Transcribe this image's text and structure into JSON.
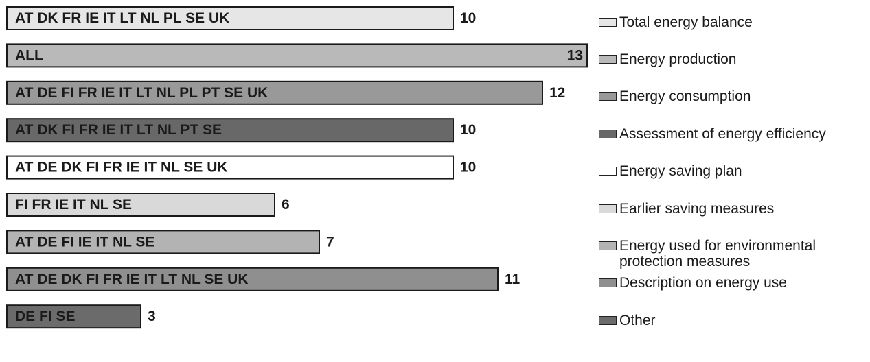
{
  "chart_data": {
    "type": "bar",
    "categories": [
      "Total energy balance",
      "Energy production",
      "Energy consumption",
      "Assessment of energy efficiency",
      "Energy saving plan",
      "Earlier saving measures",
      "Energy used for environmental protection measures",
      "Description on energy use",
      "Other"
    ],
    "bar_labels": [
      "AT DK FR IE IT LT NL PL SE UK",
      "ALL",
      "AT DE FI FR IE IT LT NL PL PT SE UK",
      "AT DK FI FR IE IT LT NL PT SE",
      "AT DE DK FI FR IE IT NL SE UK",
      "FI FR IE IT NL SE",
      "AT DE FI IE IT NL SE",
      "AT DE DK FI FR IE IT LT NL SE UK",
      "DE FI SE"
    ],
    "values": [
      10,
      13,
      12,
      10,
      10,
      6,
      7,
      11,
      3
    ],
    "colors": [
      "#e6e6e6",
      "#b9b9b9",
      "#999999",
      "#686868",
      "#ffffff",
      "#d9d9d9",
      "#b3b3b3",
      "#8f8f8f",
      "#6b6b6b"
    ]
  }
}
